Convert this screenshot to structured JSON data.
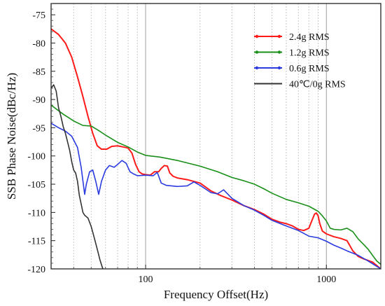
{
  "chart_data": {
    "type": "line",
    "xlabel": "Frequency Offset(Hz)",
    "ylabel": "SSB Phase Noise(dBc/Hz)",
    "xscale": "log",
    "xlim": [
      30,
      2000
    ],
    "ylim": [
      -120,
      -73
    ],
    "x_tick_labels": [
      "100",
      "1000"
    ],
    "y_ticks": [
      -75,
      -80,
      -85,
      -90,
      -95,
      -100,
      -105,
      -110,
      -115,
      -120
    ],
    "y_tick_labels": [
      "-75",
      "-80",
      "-85",
      "-90",
      "-95",
      "-100",
      "-105",
      "-110",
      "-115",
      "-120"
    ],
    "grid": "vertical dashed minor lines, solid at decades",
    "legend_position": "top-right",
    "series": [
      {
        "name": "2.4g RMS",
        "color": "#ff1a1a",
        "points": [
          [
            30,
            -77.5
          ],
          [
            33,
            -78.5
          ],
          [
            36,
            -80
          ],
          [
            39,
            -82.5
          ],
          [
            42,
            -86
          ],
          [
            45,
            -89.5
          ],
          [
            48,
            -93
          ],
          [
            51,
            -96
          ],
          [
            54,
            -98.2
          ],
          [
            57,
            -98.8
          ],
          [
            61,
            -98.8
          ],
          [
            65,
            -98.3
          ],
          [
            70,
            -98.2
          ],
          [
            75,
            -98.4
          ],
          [
            80,
            -98.6
          ],
          [
            84,
            -99.5
          ],
          [
            88,
            -101.5
          ],
          [
            92,
            -102.8
          ],
          [
            96,
            -103.2
          ],
          [
            100,
            -103.3
          ],
          [
            106,
            -103.4
          ],
          [
            112,
            -102.8
          ],
          [
            118,
            -102.8
          ],
          [
            122,
            -102.2
          ],
          [
            127,
            -101.7
          ],
          [
            132,
            -101.8
          ],
          [
            136,
            -103.0
          ],
          [
            142,
            -103.6
          ],
          [
            150,
            -103.9
          ],
          [
            170,
            -104.2
          ],
          [
            200,
            -104.8
          ],
          [
            230,
            -106.2
          ],
          [
            260,
            -107.0
          ],
          [
            300,
            -107.8
          ],
          [
            350,
            -108.8
          ],
          [
            400,
            -109.5
          ],
          [
            450,
            -110.3
          ],
          [
            500,
            -111.2
          ],
          [
            550,
            -111.7
          ],
          [
            600,
            -112.0
          ],
          [
            650,
            -112.4
          ],
          [
            700,
            -113.0
          ],
          [
            750,
            -113.2
          ],
          [
            800,
            -112.8
          ],
          [
            830,
            -111.5
          ],
          [
            860,
            -110.3
          ],
          [
            880,
            -110.1
          ],
          [
            900,
            -110.6
          ],
          [
            920,
            -112.0
          ],
          [
            950,
            -113.3
          ],
          [
            1000,
            -113.8
          ],
          [
            1100,
            -114.3
          ],
          [
            1200,
            -114.6
          ],
          [
            1300,
            -115.0
          ],
          [
            1400,
            -116.8
          ],
          [
            1500,
            -117.8
          ],
          [
            1600,
            -118.2
          ],
          [
            1800,
            -118.8
          ],
          [
            2000,
            -120.0
          ]
        ]
      },
      {
        "name": "1.2g RMS",
        "color": "#1a8f1a",
        "points": [
          [
            30,
            -91.0
          ],
          [
            35,
            -92.6
          ],
          [
            40,
            -93.8
          ],
          [
            45,
            -94.6
          ],
          [
            50,
            -94.7
          ],
          [
            55,
            -95.5
          ],
          [
            60,
            -96.3
          ],
          [
            70,
            -97.6
          ],
          [
            80,
            -98.4
          ],
          [
            90,
            -99.3
          ],
          [
            100,
            -99.9
          ],
          [
            120,
            -100.2
          ],
          [
            150,
            -100.8
          ],
          [
            200,
            -101.8
          ],
          [
            250,
            -102.8
          ],
          [
            300,
            -103.8
          ],
          [
            350,
            -104.4
          ],
          [
            400,
            -105.0
          ],
          [
            450,
            -105.8
          ],
          [
            500,
            -106.6
          ],
          [
            600,
            -107.7
          ],
          [
            700,
            -108.3
          ],
          [
            800,
            -108.9
          ],
          [
            900,
            -109.8
          ],
          [
            950,
            -110.6
          ],
          [
            1000,
            -111.5
          ],
          [
            1050,
            -112.8
          ],
          [
            1100,
            -113.0
          ],
          [
            1200,
            -113.1
          ],
          [
            1300,
            -112.8
          ],
          [
            1400,
            -113.4
          ],
          [
            1500,
            -114.7
          ],
          [
            1600,
            -115.6
          ],
          [
            1700,
            -116.5
          ],
          [
            1800,
            -117.6
          ],
          [
            1900,
            -118.6
          ],
          [
            2000,
            -119.2
          ]
        ]
      },
      {
        "name": "0.6g RMS",
        "color": "#2a3be0",
        "points": [
          [
            30,
            -94.2
          ],
          [
            33,
            -95.0
          ],
          [
            36,
            -95.6
          ],
          [
            39,
            -96.5
          ],
          [
            42,
            -98.5
          ],
          [
            44,
            -102.0
          ],
          [
            46,
            -106.8
          ],
          [
            47,
            -105.0
          ],
          [
            49,
            -102.8
          ],
          [
            51,
            -102.5
          ],
          [
            53,
            -104.5
          ],
          [
            55,
            -106.8
          ],
          [
            57,
            -104.5
          ],
          [
            60,
            -102.5
          ],
          [
            63,
            -101.7
          ],
          [
            67,
            -102.0
          ],
          [
            70,
            -101.5
          ],
          [
            74,
            -100.8
          ],
          [
            78,
            -101.3
          ],
          [
            82,
            -102.8
          ],
          [
            86,
            -103.2
          ],
          [
            90,
            -103.5
          ],
          [
            100,
            -103.4
          ],
          [
            110,
            -103.5
          ],
          [
            116,
            -102.9
          ],
          [
            122,
            -104.8
          ],
          [
            130,
            -105.2
          ],
          [
            150,
            -105.4
          ],
          [
            170,
            -105.3
          ],
          [
            185,
            -104.6
          ],
          [
            200,
            -105.2
          ],
          [
            230,
            -106.5
          ],
          [
            250,
            -106.7
          ],
          [
            270,
            -106.0
          ],
          [
            300,
            -107.5
          ],
          [
            350,
            -108.8
          ],
          [
            400,
            -109.6
          ],
          [
            450,
            -110.5
          ],
          [
            500,
            -111.4
          ],
          [
            600,
            -112.4
          ],
          [
            700,
            -113.2
          ],
          [
            800,
            -114.2
          ],
          [
            900,
            -114.5
          ],
          [
            1000,
            -115.1
          ],
          [
            1100,
            -115.8
          ],
          [
            1200,
            -116.3
          ],
          [
            1300,
            -116.8
          ],
          [
            1500,
            -117.6
          ],
          [
            1700,
            -118.6
          ],
          [
            2000,
            -120.0
          ]
        ]
      },
      {
        "name": "40℃/0g RMS",
        "color": "#333333",
        "points": [
          [
            30,
            -88.0
          ],
          [
            31,
            -87.4
          ],
          [
            32,
            -88.5
          ],
          [
            33,
            -91.5
          ],
          [
            34,
            -93.0
          ],
          [
            35,
            -94.8
          ],
          [
            36,
            -96.0
          ],
          [
            37,
            -97.5
          ],
          [
            38,
            -99.0
          ],
          [
            39,
            -101.0
          ],
          [
            40,
            -102.5
          ],
          [
            41,
            -103.0
          ],
          [
            42,
            -104.5
          ],
          [
            43,
            -107.0
          ],
          [
            44,
            -108.5
          ],
          [
            45,
            -110.0
          ],
          [
            46,
            -110.5
          ],
          [
            48,
            -111.0
          ],
          [
            50,
            -112.5
          ],
          [
            52,
            -114.5
          ],
          [
            54,
            -116.5
          ],
          [
            56,
            -118.5
          ],
          [
            58,
            -120.0
          ]
        ]
      }
    ]
  }
}
